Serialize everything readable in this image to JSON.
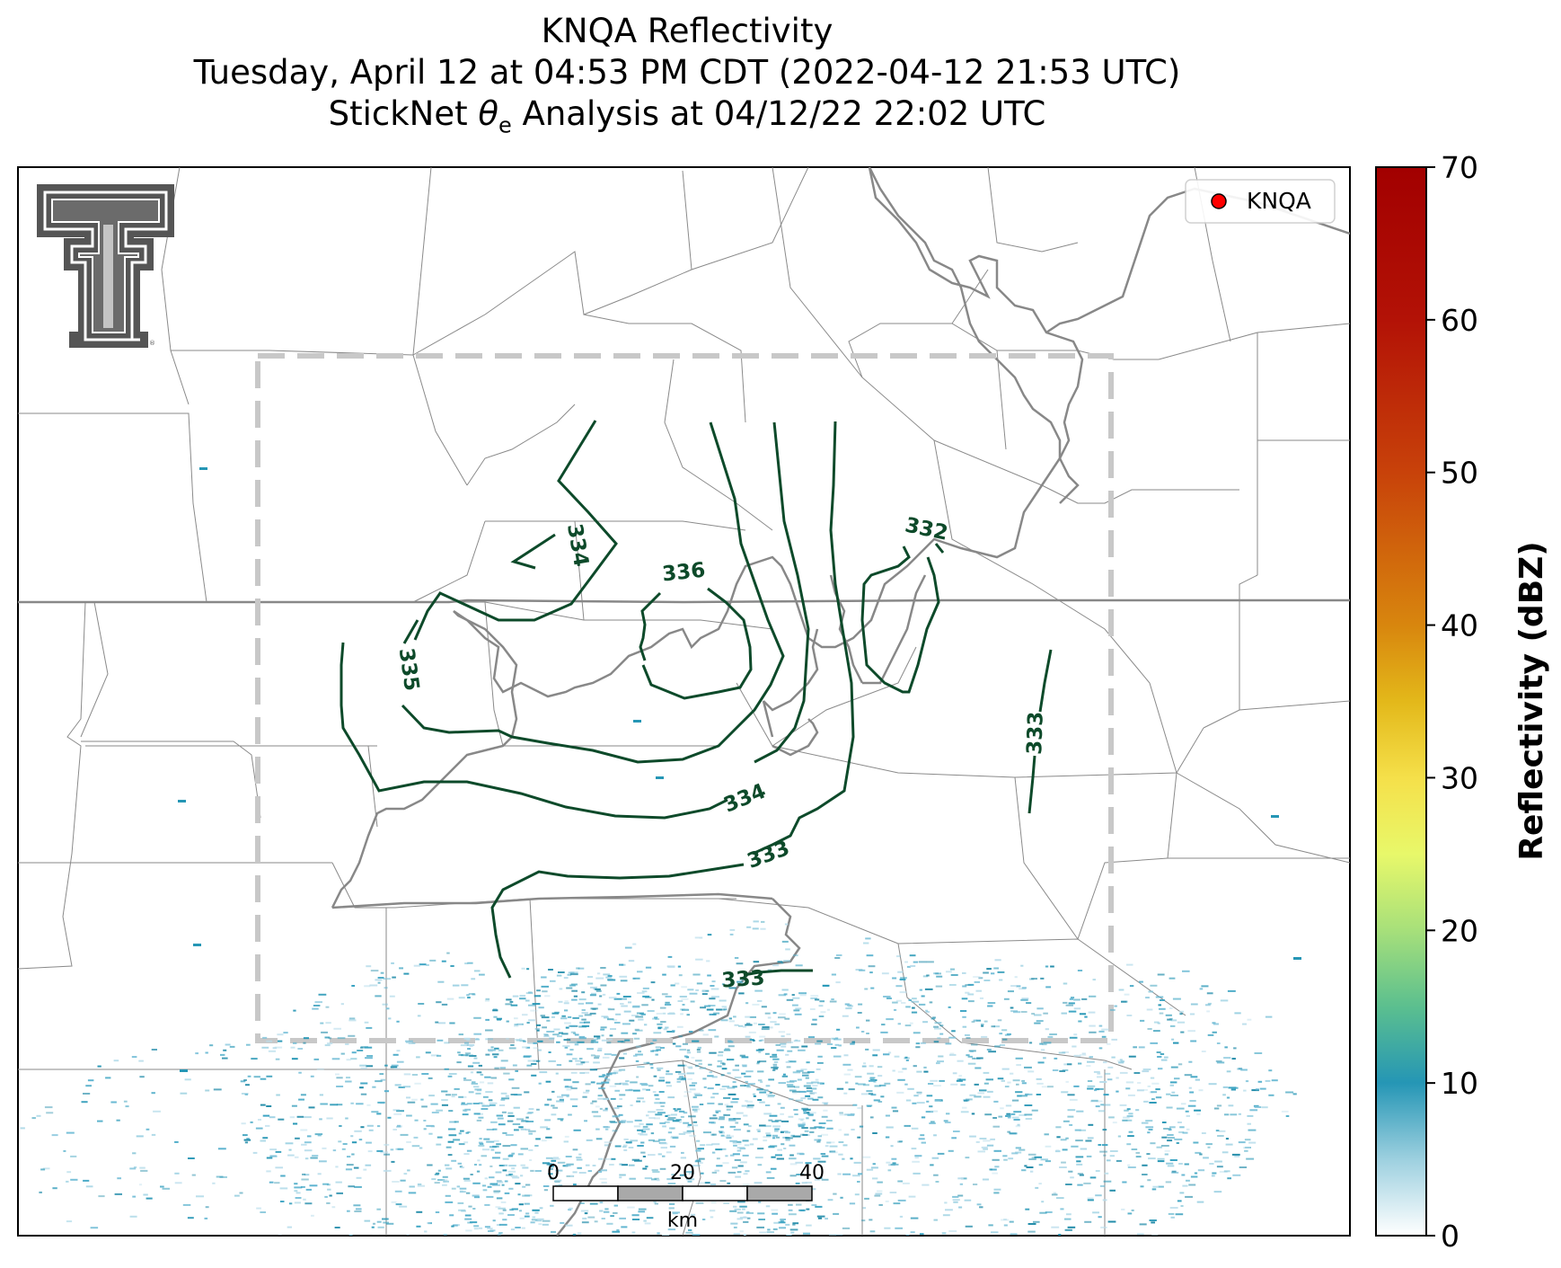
{
  "title": {
    "line1": "KNQA Reflectivity",
    "line2": "Tuesday, April 12 at 04:53 PM CDT (2022-04-12 21:53 UTC)",
    "line3_prefix": "StickNet ",
    "line3_theta": "θ",
    "line3_sub": "e",
    "line3_suffix": " Analysis at 04/12/22 22:02 UTC"
  },
  "legend": {
    "marker_color": "#ff0000",
    "label": "KNQA"
  },
  "contour_labels": [
    "334",
    "335",
    "336",
    "332",
    "333",
    "334",
    "333",
    "333"
  ],
  "contour_color": "#0d4a2a",
  "colorbar": {
    "label": "Reflectivity (dBZ)",
    "ticks": [
      "0",
      "10",
      "20",
      "30",
      "40",
      "50",
      "60",
      "70"
    ],
    "min": 0,
    "max": 70
  },
  "scale_bar": {
    "labels": [
      "0",
      "20",
      "40"
    ],
    "unit": "km"
  },
  "logo": "texas-tech-double-t-logo"
}
